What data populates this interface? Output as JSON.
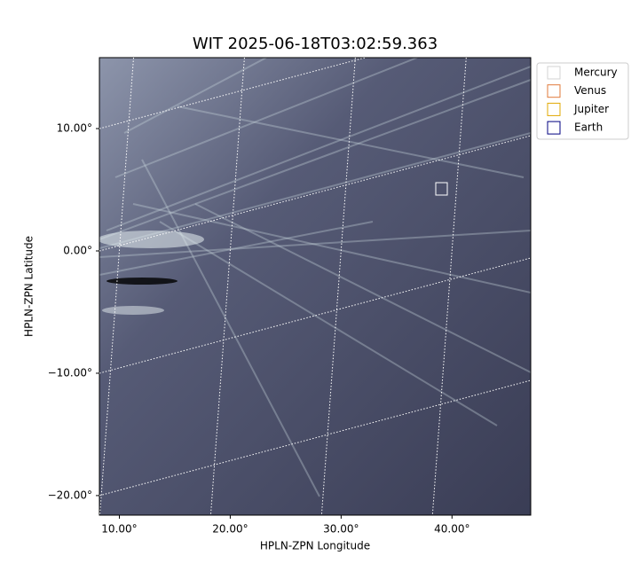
{
  "chart_data": {
    "type": "image",
    "title": "WIT 2025-06-18T03:02:59.363",
    "x_label": "HPLN-ZPN Longitude",
    "y_label": "HPLN-ZPN Latitude",
    "xlim": [
      8.2,
      47.1
    ],
    "ylim": [
      -21.6,
      15.8
    ],
    "xticks": [
      {
        "value": 10,
        "label": "10.00°"
      },
      {
        "value": 20,
        "label": "20.00°"
      },
      {
        "value": 30,
        "label": "30.00°"
      },
      {
        "value": 40,
        "label": "40.00°"
      }
    ],
    "yticks": [
      {
        "value": -20,
        "label": "−20.00°"
      },
      {
        "value": -10,
        "label": "−10.00°"
      },
      {
        "value": 0,
        "label": "0.00°"
      },
      {
        "value": 10,
        "label": "10.00°"
      }
    ],
    "grid": true,
    "legend": [
      {
        "name": "Mercury",
        "color": "#d3d3d3"
      },
      {
        "name": "Venus",
        "color": "#e07a3a"
      },
      {
        "name": "Jupiter",
        "color": "#e0a800"
      },
      {
        "name": "Earth",
        "color": "#000080"
      }
    ]
  }
}
